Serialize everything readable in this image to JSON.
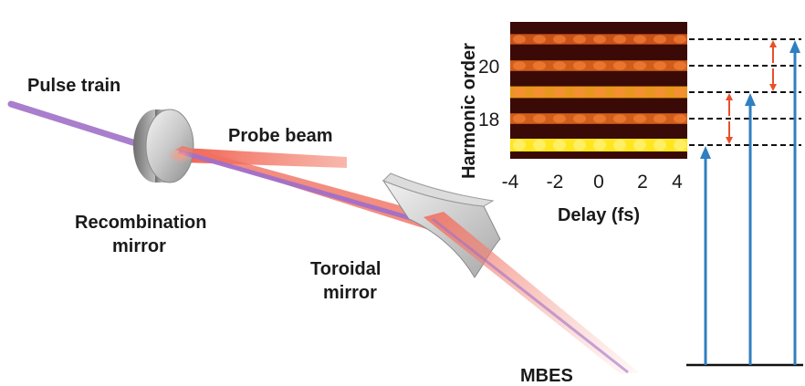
{
  "labels": {
    "pulse_train": "Pulse train",
    "probe_beam": "Probe beam",
    "recombination_mirror_line1": "Recombination",
    "recombination_mirror_line2": "mirror",
    "toroidal_mirror_line1": "Toroidal",
    "toroidal_mirror_line2": "mirror",
    "mbes": "MBES"
  },
  "spectrogram": {
    "ylabel": "Harmonic order",
    "xlabel": "Delay (fs)",
    "x_ticks": [
      "-4",
      "-2",
      "0",
      "2",
      "4"
    ],
    "y_ticks": [
      "20",
      "18"
    ],
    "harmonic_bands": [
      21,
      20,
      19,
      18,
      17
    ],
    "band_brightness": [
      0.55,
      0.6,
      0.8,
      0.6,
      1.0
    ]
  },
  "colors": {
    "pulse_train": "#a070c8",
    "probe_beam": "#f07060",
    "transition_arrow": "#2f7fc1",
    "sideband_arrow": "#e8502a",
    "spectrogram_bg": "#3a0a06"
  }
}
